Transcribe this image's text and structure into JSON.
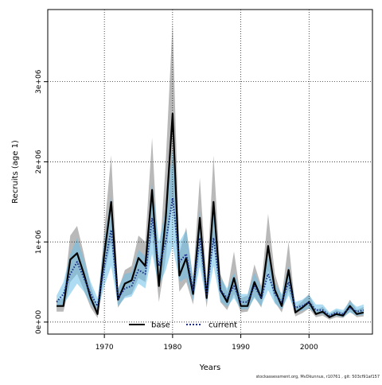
{
  "chart_data": {
    "type": "line",
    "title": "",
    "xlabel": "Years",
    "ylabel": "Recruits (age 1)",
    "xlim": [
      1961.7,
      2009.3
    ],
    "ylim": [
      -150000,
      3900000
    ],
    "x_ticks": [
      1970,
      1980,
      1990,
      2000
    ],
    "y_ticks": [
      0,
      1000000,
      2000000,
      3000000
    ],
    "y_tick_labels": [
      "0e+00",
      "1e+06",
      "2e+06",
      "3e+06"
    ],
    "grid": "dotted",
    "legend_position": "bottom",
    "x": [
      1963,
      1964,
      1965,
      1966,
      1967,
      1968,
      1969,
      1970,
      1971,
      1972,
      1973,
      1974,
      1975,
      1976,
      1977,
      1978,
      1979,
      1980,
      1981,
      1982,
      1983,
      1984,
      1985,
      1986,
      1987,
      1988,
      1989,
      1990,
      1991,
      1992,
      1993,
      1994,
      1995,
      1996,
      1997,
      1998,
      1999,
      2000,
      2001,
      2002,
      2003,
      2004,
      2005,
      2006,
      2007,
      2008
    ],
    "series": [
      {
        "name": "base",
        "color": "#000000",
        "line_style": "solid",
        "band_color": "#808080",
        "values": [
          200000,
          200000,
          780000,
          860000,
          600000,
          300000,
          100000,
          850000,
          1500000,
          280000,
          480000,
          520000,
          800000,
          700000,
          1650000,
          450000,
          1300000,
          2600000,
          580000,
          800000,
          350000,
          1300000,
          300000,
          1500000,
          400000,
          250000,
          550000,
          200000,
          200000,
          500000,
          300000,
          950000,
          400000,
          200000,
          650000,
          120000,
          180000,
          250000,
          100000,
          130000,
          60000,
          100000,
          80000,
          200000,
          100000,
          120000
        ],
        "lower": [
          130000,
          130000,
          500000,
          600000,
          400000,
          180000,
          50000,
          600000,
          1000000,
          180000,
          320000,
          350000,
          550000,
          500000,
          1100000,
          250000,
          800000,
          1600000,
          380000,
          500000,
          220000,
          900000,
          180000,
          1000000,
          250000,
          150000,
          350000,
          120000,
          130000,
          320000,
          180000,
          650000,
          250000,
          120000,
          400000,
          70000,
          110000,
          170000,
          60000,
          80000,
          30000,
          60000,
          50000,
          130000,
          60000,
          70000
        ],
        "upper": [
          280000,
          300000,
          1080000,
          1200000,
          850000,
          450000,
          180000,
          1150000,
          2080000,
          400000,
          650000,
          700000,
          1080000,
          1000000,
          2300000,
          700000,
          2000000,
          3750000,
          860000,
          1180000,
          550000,
          1800000,
          480000,
          2080000,
          600000,
          380000,
          880000,
          300000,
          330000,
          720000,
          450000,
          1350000,
          600000,
          320000,
          1000000,
          180000,
          260000,
          350000,
          150000,
          190000,
          100000,
          150000,
          120000,
          280000,
          150000,
          190000
        ]
      },
      {
        "name": "current",
        "color": "#1a2e88",
        "line_style": "dotted",
        "band_color": "#6cc0e8",
        "values": [
          250000,
          350000,
          600000,
          750000,
          550000,
          350000,
          200000,
          700000,
          1150000,
          300000,
          420000,
          450000,
          650000,
          600000,
          1300000,
          700000,
          1000000,
          1550000,
          750000,
          850000,
          400000,
          1050000,
          350000,
          1050000,
          400000,
          300000,
          450000,
          250000,
          250000,
          450000,
          300000,
          600000,
          350000,
          250000,
          500000,
          180000,
          200000,
          250000,
          150000,
          150000,
          80000,
          120000,
          100000,
          180000,
          130000,
          150000
        ],
        "lower": [
          180000,
          220000,
          350000,
          480000,
          380000,
          220000,
          130000,
          450000,
          700000,
          200000,
          300000,
          320000,
          480000,
          420000,
          850000,
          450000,
          650000,
          950000,
          500000,
          550000,
          270000,
          700000,
          230000,
          700000,
          260000,
          190000,
          300000,
          160000,
          160000,
          300000,
          200000,
          400000,
          230000,
          160000,
          330000,
          120000,
          140000,
          170000,
          100000,
          100000,
          50000,
          80000,
          60000,
          120000,
          80000,
          90000
        ],
        "upper": [
          330000,
          500000,
          850000,
          1050000,
          780000,
          500000,
          300000,
          1000000,
          1600000,
          420000,
          600000,
          620000,
          900000,
          820000,
          1750000,
          1000000,
          1400000,
          2150000,
          1000000,
          1150000,
          550000,
          1400000,
          480000,
          1400000,
          560000,
          420000,
          620000,
          350000,
          350000,
          620000,
          420000,
          820000,
          480000,
          350000,
          700000,
          250000,
          280000,
          340000,
          220000,
          220000,
          120000,
          170000,
          150000,
          260000,
          190000,
          220000
        ]
      }
    ]
  },
  "footer": "stockassessment.org, MvDkunnus, r10761 , git: 503cf91af157"
}
